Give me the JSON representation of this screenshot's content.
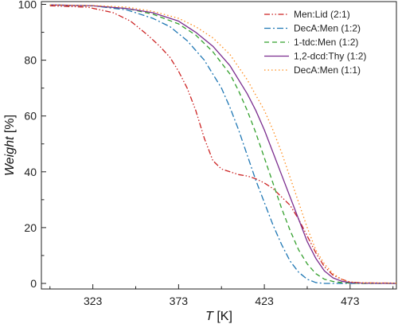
{
  "chart_data": {
    "type": "line",
    "title": "",
    "xlabel": {
      "var": "T",
      "unit": " [K]"
    },
    "ylabel": {
      "var": "Weight",
      "unit": " [%]"
    },
    "xlim": [
      293,
      500
    ],
    "ylim": [
      -2,
      101
    ],
    "xticks": [
      323,
      373,
      423,
      473
    ],
    "yticks": [
      0,
      20,
      40,
      60,
      80,
      100
    ],
    "grid": false,
    "legend": "top-right",
    "series": [
      {
        "name": "Men:Lid (2:1)",
        "color": "#cc2222",
        "dash": "dash-dot-dot",
        "x": [
          298,
          320,
          335,
          345,
          355,
          362,
          368,
          373,
          378,
          383,
          388,
          393,
          398,
          403,
          408,
          413,
          418,
          423,
          428,
          433,
          438,
          443,
          448,
          453,
          458,
          463,
          468,
          473,
          480,
          500
        ],
        "y": [
          99.5,
          99,
          97,
          94,
          89,
          85,
          81,
          76,
          70,
          62,
          52,
          44,
          41,
          40,
          39,
          38.5,
          37.5,
          36,
          34,
          31,
          28,
          23,
          17,
          11,
          6,
          3,
          1.5,
          0.5,
          0.2,
          0.1
        ]
      },
      {
        "name": "DecA:Men (1:2)",
        "color": "#1f77b4",
        "dash": "dash-dot",
        "x": [
          298,
          323,
          343,
          358,
          368,
          378,
          388,
          398,
          403,
          408,
          413,
          418,
          423,
          428,
          433,
          438,
          443,
          448,
          453,
          458,
          463,
          470,
          500
        ],
        "y": [
          99.8,
          99.5,
          98,
          95,
          92,
          87,
          80,
          70,
          63,
          55,
          46,
          37,
          29,
          21,
          14,
          8,
          4,
          1.5,
          0.3,
          0,
          0,
          0,
          0
        ]
      },
      {
        "name": "1-tdc:Men (1:2)",
        "color": "#33a02c",
        "dash": "dash",
        "x": [
          298,
          323,
          343,
          358,
          373,
          383,
          393,
          403,
          408,
          413,
          418,
          423,
          428,
          433,
          438,
          443,
          448,
          453,
          458,
          463,
          468,
          473,
          480,
          500
        ],
        "y": [
          99.8,
          99.5,
          98.5,
          96.5,
          93,
          89,
          83,
          75,
          69,
          62,
          54,
          45,
          36,
          27,
          19,
          12,
          7,
          3.5,
          1.5,
          0.7,
          0.3,
          0.1,
          0,
          0
        ]
      },
      {
        "name": "1,2-dcd:Thy (1:2)",
        "color": "#7b2d8e",
        "dash": "solid",
        "x": [
          298,
          323,
          343,
          358,
          373,
          383,
          393,
          403,
          413,
          418,
          423,
          428,
          433,
          438,
          443,
          448,
          453,
          458,
          463,
          468,
          473,
          480,
          500
        ],
        "y": [
          99.8,
          99.5,
          98.5,
          97,
          94,
          90,
          85,
          78,
          68,
          62,
          55,
          47,
          39,
          31,
          23,
          15,
          9,
          4.5,
          2,
          0.8,
          0.3,
          0.1,
          0
        ]
      },
      {
        "name": "DecA:Men (1:1)",
        "color": "#ff8c1a",
        "dash": "dot",
        "x": [
          298,
          323,
          343,
          358,
          373,
          383,
          393,
          403,
          413,
          423,
          428,
          433,
          438,
          443,
          448,
          453,
          458,
          463,
          468,
          473,
          480,
          500
        ],
        "y": [
          99.8,
          99.6,
          99,
          97.5,
          95,
          92,
          88,
          82,
          73,
          62,
          55,
          47,
          38,
          29,
          20,
          12,
          7,
          3.5,
          1.5,
          0.5,
          0.2,
          0.1
        ]
      }
    ]
  }
}
